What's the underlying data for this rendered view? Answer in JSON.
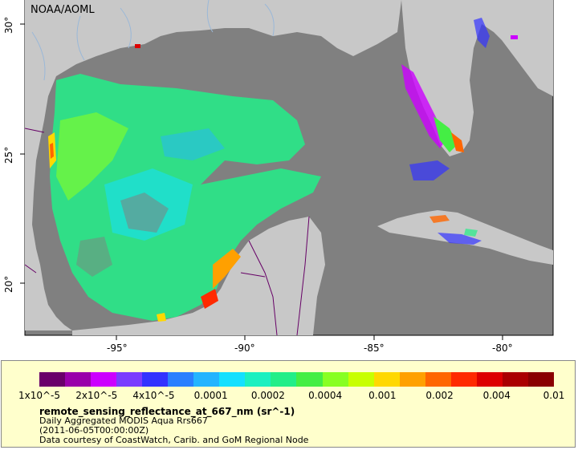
{
  "map": {
    "credit": "NOAA/AOML",
    "x_ticks": [
      "-95°",
      "-90°",
      "-85°",
      "-80°"
    ],
    "y_ticks": [
      "30°",
      "25°",
      "20°"
    ],
    "colors": {
      "land": "#c8c8c8",
      "ocean": "#808080",
      "border": "#660066",
      "river": "#9ab8d8"
    }
  },
  "legend": {
    "tick_labels": [
      "1x10^-5",
      "2x10^-5",
      "4x10^-5",
      "0.0001",
      "0.0002",
      "0.0004",
      "0.001",
      "0.002",
      "0.004",
      "0.01"
    ],
    "variable_title": "remote_sensing_reflectance_at_667_nm (sr^-1)",
    "dataset_line": "Daily Aggregated MODIS Aqua Rrs667",
    "date_line": "(2011-06-05T00:00:00Z)",
    "courtesy_line": "Data courtesy of CoastWatch, Carib. and GoM Regional Node",
    "colorbar_colors": [
      "#6a006a",
      "#9900aa",
      "#cc00ff",
      "#7a3cff",
      "#3333ff",
      "#2a7fff",
      "#24b4ff",
      "#14e0ff",
      "#1cf0c0",
      "#22ee88",
      "#44ee44",
      "#88ff22",
      "#c8ff00",
      "#ffd800",
      "#ffa000",
      "#ff6600",
      "#ff2a00",
      "#dd0000",
      "#aa0000",
      "#8a0000"
    ]
  }
}
